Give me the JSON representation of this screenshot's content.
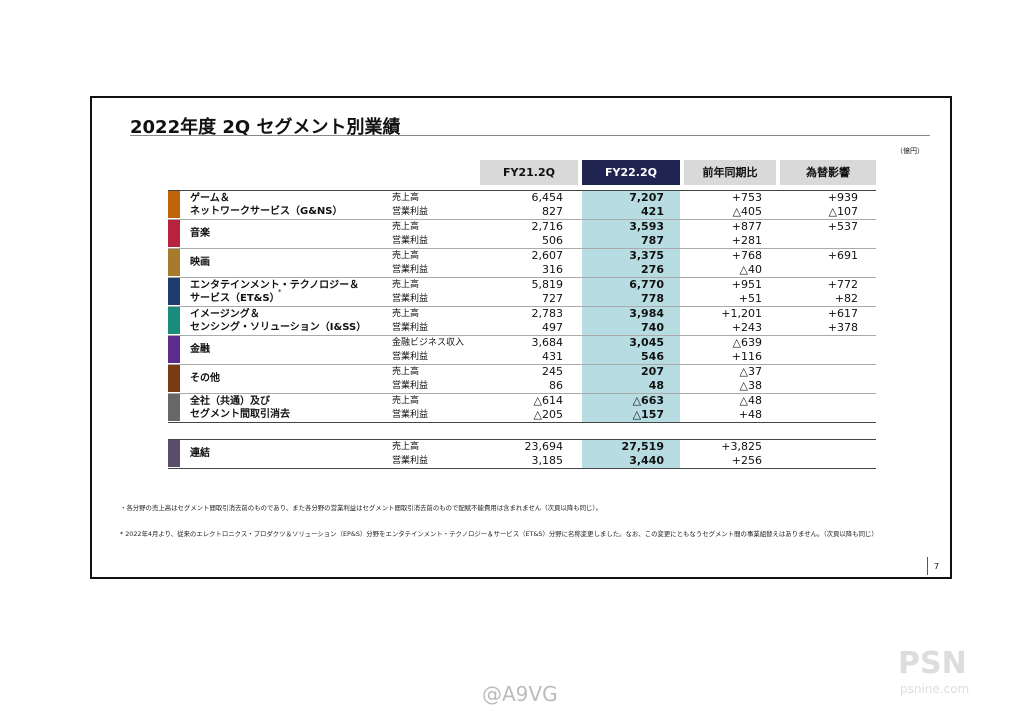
{
  "header": {
    "title": "2022年度 2Q セグメント別業績",
    "unit": "（億円）"
  },
  "table": {
    "columns": [
      "FY21.2Q",
      "FY22.2Q",
      "前年同期比",
      "為替影響"
    ],
    "segments": [
      {
        "name_lines": [
          "ゲーム＆",
          "ネットワークサービス（G&NS）"
        ],
        "color": "#c0640c",
        "rows": [
          {
            "label": "売上高",
            "fy21": "6,454",
            "fy22": "7,207",
            "yoy": "+753",
            "fx": "+939"
          },
          {
            "label": "営業利益",
            "fy21": "827",
            "fy22": "421",
            "yoy": "△405",
            "fx": "△107"
          }
        ]
      },
      {
        "name_lines": [
          "音楽"
        ],
        "color": "#b8223e",
        "rows": [
          {
            "label": "売上高",
            "fy21": "2,716",
            "fy22": "3,593",
            "yoy": "+877",
            "fx": "+537"
          },
          {
            "label": "営業利益",
            "fy21": "506",
            "fy22": "787",
            "yoy": "+281"
          }
        ]
      },
      {
        "name_lines": [
          "映画"
        ],
        "color": "#a47c2c",
        "rows": [
          {
            "label": "売上高",
            "fy21": "2,607",
            "fy22": "3,375",
            "yoy": "+768",
            "fx": "+691"
          },
          {
            "label": "営業利益",
            "fy21": "316",
            "fy22": "276",
            "yoy": "△40"
          }
        ]
      },
      {
        "name_lines": [
          "エンタテインメント・テクノロジー＆",
          "サービス（ET&S）"
        ],
        "note_mark": "*",
        "color": "#1f3c70",
        "rows": [
          {
            "label": "売上高",
            "fy21": "5,819",
            "fy22": "6,770",
            "yoy": "+951",
            "fx": "+772"
          },
          {
            "label": "営業利益",
            "fy21": "727",
            "fy22": "778",
            "yoy": "+51",
            "fx": "+82"
          }
        ]
      },
      {
        "name_lines": [
          "イメージング＆",
          "センシング・ソリューション（I&SS）"
        ],
        "color": "#1a8c7c",
        "rows": [
          {
            "label": "売上高",
            "fy21": "2,783",
            "fy22": "3,984",
            "yoy": "+1,201",
            "fx": "+617"
          },
          {
            "label": "営業利益",
            "fy21": "497",
            "fy22": "740",
            "yoy": "+243",
            "fx": "+378"
          }
        ]
      },
      {
        "name_lines": [
          "金融"
        ],
        "color": "#5c2c8c",
        "rows": [
          {
            "label": "金融ビジネス収入",
            "fy21": "3,684",
            "fy22": "3,045",
            "yoy": "△639"
          },
          {
            "label": "営業利益",
            "fy21": "431",
            "fy22": "546",
            "yoy": "+116"
          }
        ]
      },
      {
        "name_lines": [
          "その他"
        ],
        "color": "#7a3a12",
        "rows": [
          {
            "label": "売上高",
            "fy21": "245",
            "fy22": "207",
            "yoy": "△37"
          },
          {
            "label": "営業利益",
            "fy21": "86",
            "fy22": "48",
            "yoy": "△38"
          }
        ]
      },
      {
        "name_lines": [
          "全社（共通）及び",
          "セグメント間取引消去"
        ],
        "color": "#676767",
        "rows": [
          {
            "label": "売上高",
            "fy21": "△614",
            "fy22": "△663",
            "yoy": "△48"
          },
          {
            "label": "営業利益",
            "fy21": "△205",
            "fy22": "△157",
            "yoy": "+48"
          }
        ]
      }
    ],
    "total": {
      "name_lines": [
        "連結"
      ],
      "color": "#5c4c6c",
      "rows": [
        {
          "label": "売上高",
          "fy21": "23,694",
          "fy22": "27,519",
          "yoy": "+3,825"
        },
        {
          "label": "営業利益",
          "fy21": "3,185",
          "fy22": "3,440",
          "yoy": "+256"
        }
      ]
    }
  },
  "footnotes": [
    "・各分野の売上高はセグメント間取引消去前のものであり、また各分野の営業利益はセグメント間取引消去前のもので配賦不能費用は含まれません（次頁以降も同じ）。",
    "* 2022年4月より、従来のエレクトロニクス・プロダクツ＆ソリューション（EP&S）分野をエンタテインメント・テクノロジー＆サービス（ET&S）分野に名称変更しました。なお、この変更にともなうセグメント間の事業組替えはありません。（次頁以降も同じ）"
  ],
  "page_number": "7",
  "watermarks": [
    "@A9VG",
    "PSN",
    "psnine.com"
  ]
}
